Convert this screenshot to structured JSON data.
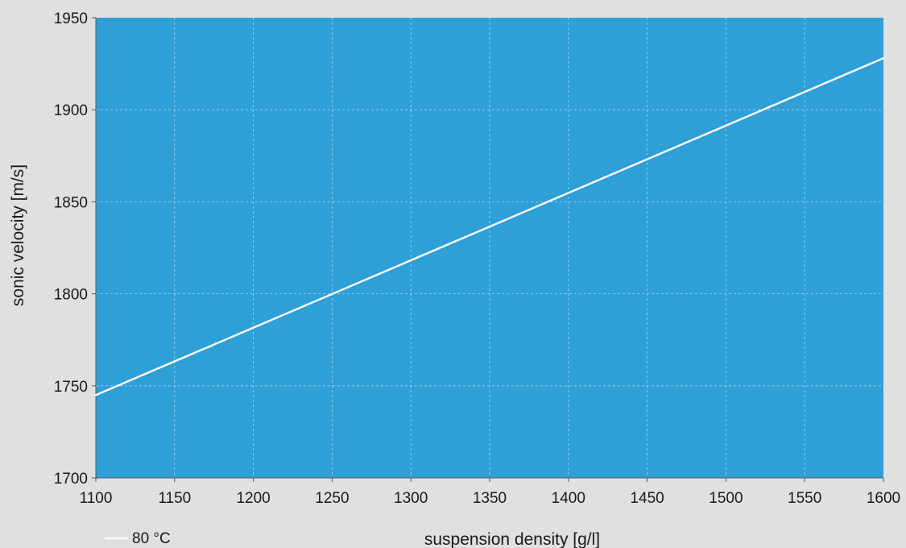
{
  "chart_data": {
    "type": "line",
    "title": "",
    "xlabel": "suspension density [g/l]",
    "ylabel": "sonic velocity [m/s]",
    "xlim": [
      1100,
      1600
    ],
    "ylim": [
      1700,
      1950
    ],
    "x_ticks": [
      1100,
      1150,
      1200,
      1250,
      1300,
      1350,
      1400,
      1450,
      1500,
      1550,
      1600
    ],
    "y_ticks": [
      1700,
      1750,
      1800,
      1850,
      1900,
      1950
    ],
    "grid": true,
    "legend_position": "bottom-left",
    "colors": {
      "plot_background": "#2f9fd8",
      "page_background": "#dfe1df",
      "series_line": "#ffffff",
      "grid": "#a9d6ee"
    },
    "series": [
      {
        "name": "80 °C",
        "x": [
          1100,
          1600
        ],
        "y": [
          1745,
          1928
        ]
      }
    ]
  }
}
